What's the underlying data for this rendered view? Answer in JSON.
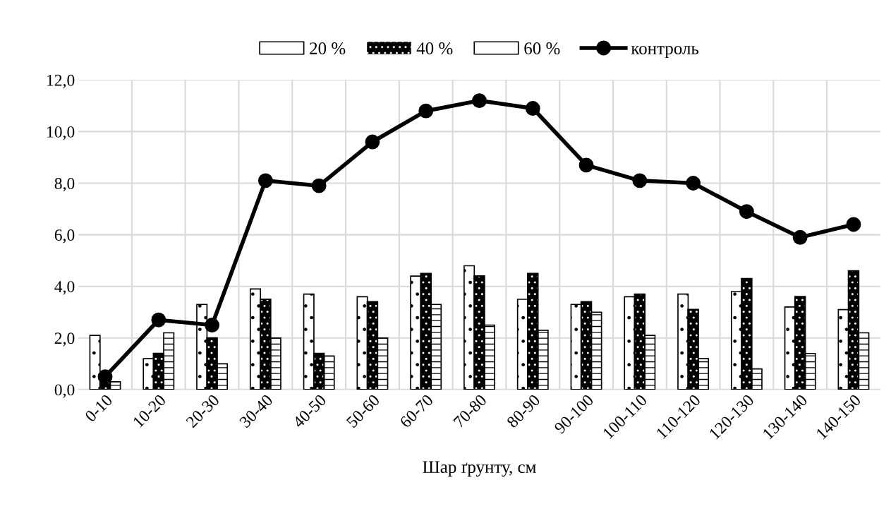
{
  "chart_data": {
    "type": "bar",
    "xlabel": "Шар ґрунту, см",
    "categories": [
      "0-10",
      "10-20",
      "20-30",
      "30-40",
      "40-50",
      "50-60",
      "60-70",
      "70-80",
      "80-90",
      "90-100",
      "100-110",
      "110-120",
      "120-130",
      "130-140",
      "140-150"
    ],
    "series": [
      {
        "name": "20 %",
        "color": "#ffffff",
        "values": [
          2.1,
          1.2,
          3.3,
          3.9,
          3.7,
          3.6,
          4.4,
          4.8,
          3.5,
          3.3,
          3.6,
          3.7,
          3.8,
          3.2,
          3.1
        ]
      },
      {
        "name": "40 %",
        "color": "#000000",
        "values": [
          0.3,
          1.4,
          2.0,
          3.5,
          1.4,
          3.4,
          4.5,
          4.4,
          4.5,
          3.4,
          3.7,
          3.1,
          4.3,
          3.6,
          4.6
        ]
      },
      {
        "name": "60 %",
        "color": "#ffffff",
        "values": [
          0.3,
          2.2,
          1.0,
          2.0,
          1.3,
          2.0,
          3.3,
          2.5,
          2.3,
          3.0,
          2.1,
          1.2,
          0.8,
          1.4,
          2.2
        ]
      },
      {
        "name": "контроль",
        "color": "#000000",
        "type": "line",
        "marker": "circle",
        "values": [
          0.5,
          2.7,
          2.5,
          8.1,
          7.9,
          9.6,
          10.8,
          11.2,
          10.9,
          8.7,
          8.1,
          8.0,
          6.9,
          5.9,
          6.4
        ]
      }
    ],
    "ylim": [
      0,
      12
    ],
    "yticks": [
      {
        "value": 0,
        "label": "0,0"
      },
      {
        "value": 2,
        "label": "2,0"
      },
      {
        "value": 4,
        "label": "4,0"
      },
      {
        "value": 6,
        "label": "6,0"
      },
      {
        "value": 8,
        "label": "8,0"
      },
      {
        "value": 10,
        "label": "10,0"
      },
      {
        "value": 12,
        "label": "12,0"
      }
    ],
    "grid": true,
    "legend": "top"
  }
}
